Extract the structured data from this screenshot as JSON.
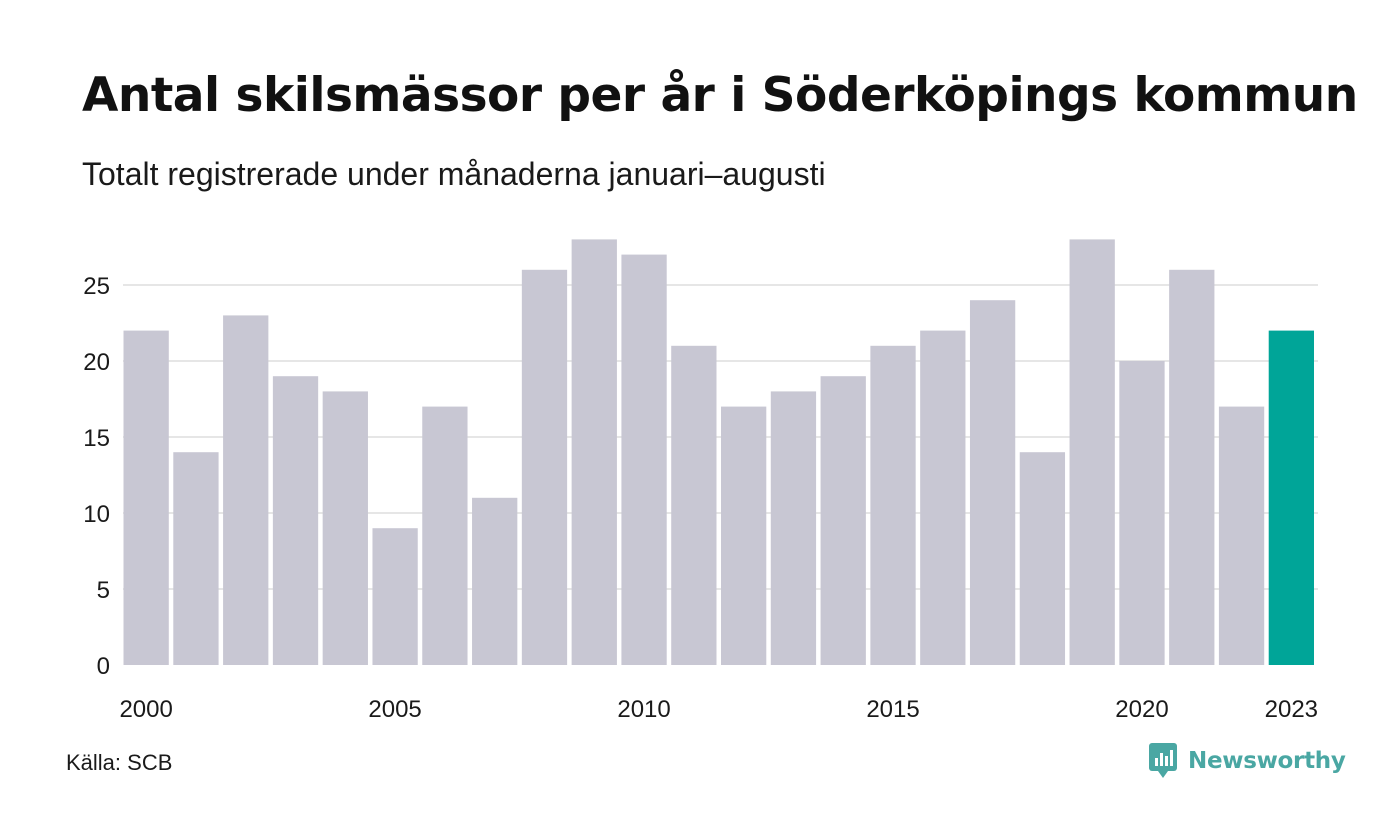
{
  "chart_data": {
    "type": "bar",
    "title": "Antal skilsmässor per år i Söderköpings kommun",
    "subtitle": "Totalt registrerade under månaderna januari–augusti",
    "categories": [
      "2000",
      "2001",
      "2002",
      "2003",
      "2004",
      "2005",
      "2006",
      "2007",
      "2008",
      "2009",
      "2010",
      "2011",
      "2012",
      "2013",
      "2014",
      "2015",
      "2016",
      "2017",
      "2018",
      "2019",
      "2020",
      "2021",
      "2022",
      "2023"
    ],
    "values": [
      22,
      14,
      23,
      19,
      18,
      9,
      17,
      11,
      26,
      28,
      27,
      21,
      17,
      18,
      19,
      21,
      22,
      24,
      14,
      28,
      20,
      26,
      17,
      22
    ],
    "x_tick_labels": [
      "2000",
      "2005",
      "2010",
      "2015",
      "2020",
      "2023"
    ],
    "y_ticks": [
      0,
      5,
      10,
      15,
      20,
      25
    ],
    "ylim": [
      0,
      28
    ],
    "grid": true,
    "colors": {
      "bar": "#c8c7d3",
      "highlight": "#00a598",
      "grid": "#e6e6e6"
    },
    "highlight_category": "2023"
  },
  "footer": {
    "source": "Källa: SCB",
    "brand": "Newsworthy",
    "brand_icon": "newsworthy-logo-icon",
    "brand_color": "#4aa7a3"
  }
}
